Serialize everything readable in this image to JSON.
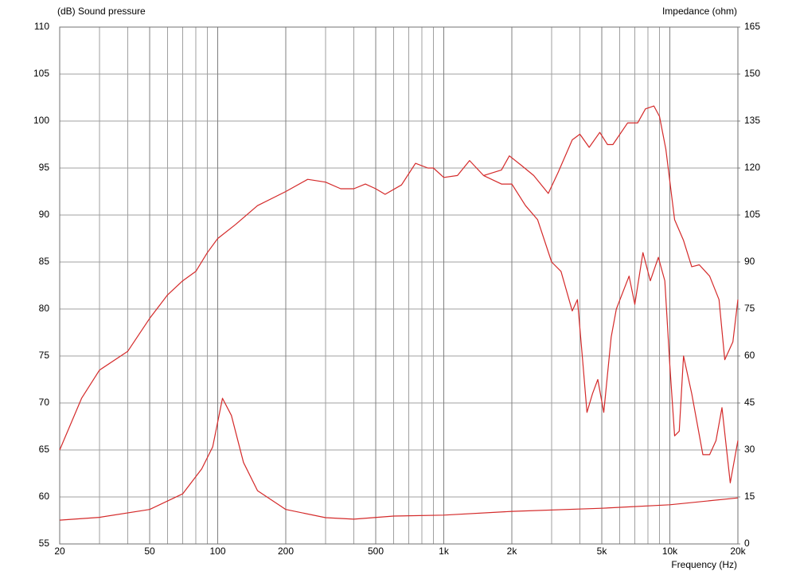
{
  "chart_data": {
    "type": "line",
    "left_axis_label": "(dB) Sound pressure",
    "right_axis_label": "Impedance (ohm)",
    "x_axis_label": "Frequency (Hz)",
    "xscale": "log",
    "xlim": [
      20,
      20000
    ],
    "xticks": [
      20,
      50,
      100,
      200,
      500,
      {
        "value": 1000,
        "label": "1k"
      },
      {
        "value": 2000,
        "label": "2k"
      },
      {
        "value": 5000,
        "label": "5k"
      },
      {
        "value": 10000,
        "label": "10k"
      },
      {
        "value": 20000,
        "label": "20k"
      }
    ],
    "xgrid": [
      30,
      40,
      60,
      70,
      80,
      90,
      300,
      400,
      600,
      700,
      800,
      900,
      3000,
      4000,
      6000,
      7000,
      8000,
      9000
    ],
    "ylim": [
      55,
      110
    ],
    "yticks": [
      55,
      60,
      65,
      70,
      75,
      80,
      85,
      90,
      95,
      100,
      105,
      110
    ],
    "y2lim": [
      0,
      165
    ],
    "y2ticks": [
      0,
      15,
      30,
      45,
      60,
      75,
      90,
      105,
      120,
      135,
      150,
      165
    ],
    "grid": true,
    "series": [
      {
        "color": "#d42a2a",
        "x": [
          20,
          25,
          30,
          40,
          50,
          60,
          70,
          80,
          90,
          100,
          120,
          150,
          200,
          250,
          300,
          350,
          400,
          450,
          500,
          550,
          650,
          750,
          850,
          900,
          1000,
          1150,
          1300,
          1500,
          1800,
          1950,
          2200,
          2500,
          2900,
          3200,
          3700,
          4000,
          4400,
          4900,
          5300,
          5600,
          6500,
          7200,
          7800,
          8500,
          9000,
          9600,
          10500,
          11500,
          12500,
          13500,
          15000,
          16500,
          17500,
          19000,
          20000
        ],
        "values": [
          65,
          70.5,
          73.5,
          75.5,
          79,
          81.5,
          83,
          84,
          86,
          87.5,
          89,
          91,
          92.5,
          93.8,
          93.5,
          92.8,
          92.8,
          93.3,
          92.8,
          92.2,
          93.2,
          95.5,
          95,
          95,
          94,
          94.2,
          95.8,
          94.2,
          94.8,
          96.3,
          95.3,
          94.2,
          92.3,
          94.5,
          98,
          98.6,
          97.2,
          98.8,
          97.5,
          97.5,
          99.8,
          99.8,
          101.3,
          101.6,
          100.5,
          97,
          89.5,
          87.3,
          84.5,
          84.7,
          83.5,
          81,
          74.6,
          76.5,
          81
        ]
      },
      {
        "color": "#d42a2a",
        "x": [
          1500,
          1800,
          2000,
          2300,
          2600,
          3000,
          3300,
          3700,
          3900,
          4100,
          4300,
          4550,
          4800,
          5100,
          5500,
          5800,
          6600,
          7000,
          7600,
          8200,
          8900,
          9500,
          10000,
          10500,
          11000,
          11500,
          12500,
          14000,
          15000,
          16000,
          17000,
          18500,
          20000
        ],
        "values": [
          94.2,
          93.3,
          93.3,
          91,
          89.5,
          85,
          84,
          79.8,
          81,
          75,
          69,
          71,
          72.5,
          69,
          77,
          80,
          83.5,
          80.5,
          86,
          83,
          85.5,
          83,
          74,
          66.5,
          67,
          75,
          71,
          64.5,
          64.5,
          66,
          69.5,
          61.5,
          66
        ]
      },
      {
        "color": "#d42a2a",
        "axis": "y2",
        "x": [
          20,
          30,
          50,
          70,
          85,
          95,
          105,
          115,
          130,
          150,
          200,
          300,
          400,
          600,
          1000,
          2000,
          5000,
          10000,
          20000
        ],
        "values": [
          7.6,
          8.5,
          11,
          16,
          24,
          31,
          46.5,
          41,
          26,
          17,
          11,
          8.4,
          7.9,
          8.9,
          9.2,
          10.4,
          11.4,
          12.5,
          14.7
        ]
      }
    ]
  }
}
